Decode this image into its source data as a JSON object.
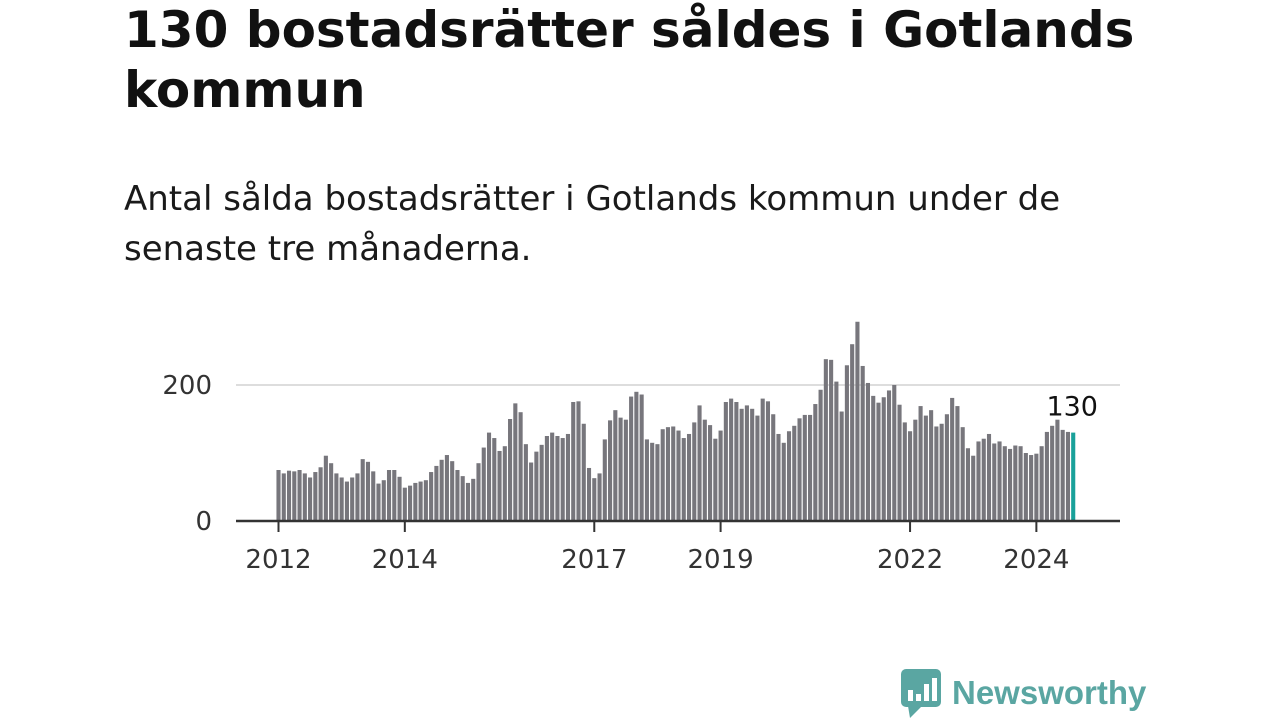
{
  "title": "130 bostadsrätter såldes i Gotlands kommun",
  "subtitle": "Antal sålda bostadsrätter i Gotlands kommun under de senaste tre månaderna.",
  "brand": {
    "name": "Newsworthy",
    "color": "#5aa6a2",
    "icon": "newsworthy-chart-logo-icon"
  },
  "colors": {
    "bar": "#77767c",
    "highlight": "#19a19a",
    "gridline": "#dddddd",
    "baseline": "#333333"
  },
  "chart_data": {
    "type": "bar",
    "title": "130 bostadsrätter såldes i Gotlands kommun",
    "subtitle": "Antal sålda bostadsrätter i Gotlands kommun under de senaste tre månaderna.",
    "xlabel": "",
    "ylabel": "",
    "start": "2012-01",
    "interval": "month",
    "ylim": [
      0,
      300
    ],
    "yticks": [
      0,
      200
    ],
    "xticks": [
      "2012",
      "2014",
      "2017",
      "2019",
      "2022",
      "2024"
    ],
    "grid": true,
    "legend": "none",
    "highlight": {
      "label": "130",
      "index": "last"
    },
    "values": [
      75,
      70,
      74,
      73,
      75,
      70,
      64,
      72,
      79,
      96,
      85,
      70,
      64,
      58,
      64,
      70,
      91,
      87,
      73,
      55,
      60,
      75,
      75,
      65,
      49,
      52,
      56,
      58,
      60,
      72,
      81,
      90,
      97,
      88,
      75,
      66,
      56,
      62,
      85,
      108,
      130,
      122,
      103,
      110,
      150,
      173,
      160,
      113,
      86,
      102,
      112,
      125,
      130,
      125,
      122,
      128,
      175,
      176,
      143,
      78,
      63,
      70,
      120,
      148,
      163,
      152,
      149,
      183,
      190,
      186,
      120,
      115,
      113,
      135,
      138,
      139,
      133,
      122,
      128,
      145,
      170,
      149,
      141,
      121,
      133,
      175,
      180,
      175,
      165,
      170,
      165,
      155,
      180,
      176,
      157,
      128,
      115,
      132,
      140,
      151,
      156,
      156,
      172,
      193,
      238,
      237,
      205,
      161,
      229,
      260,
      293,
      228,
      203,
      184,
      174,
      182,
      192,
      200,
      171,
      145,
      132,
      149,
      169,
      155,
      163,
      139,
      143,
      157,
      181,
      169,
      138,
      107,
      96,
      117,
      121,
      128,
      114,
      117,
      110,
      106,
      111,
      110,
      100,
      97,
      99,
      110,
      131,
      140,
      149,
      134,
      131,
      130
    ]
  }
}
